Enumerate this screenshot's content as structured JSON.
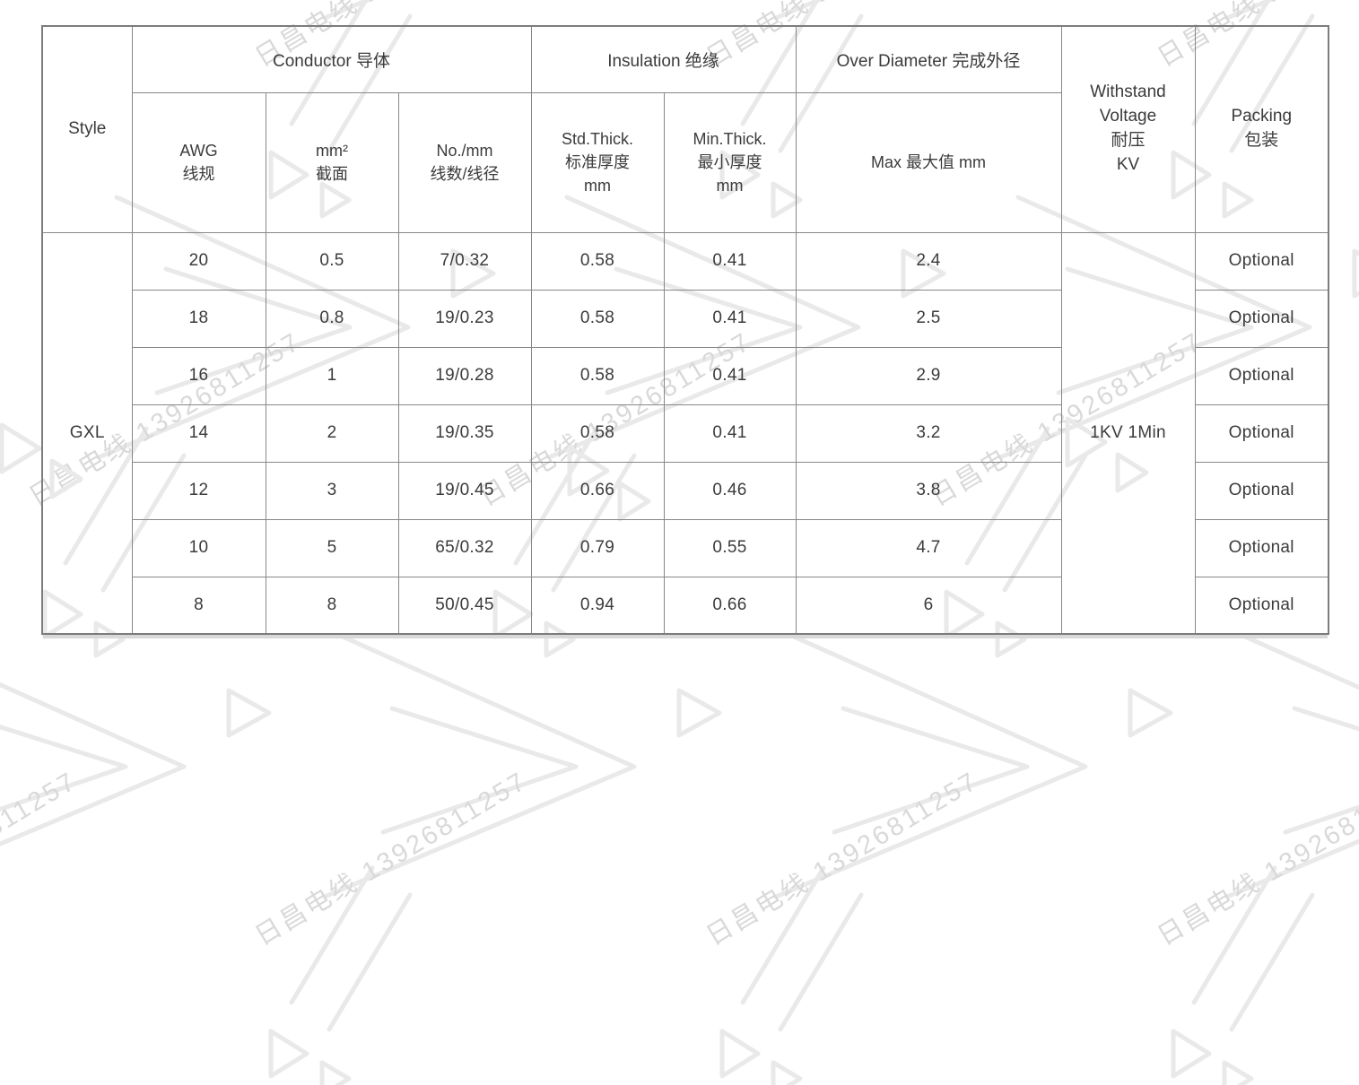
{
  "watermark": {
    "text": "日昌电线 13926811257"
  },
  "table": {
    "header": {
      "style_label": "Style",
      "conductor_group": "Conductor 导体",
      "insulation_group": "Insulation 绝缘",
      "over_diameter_group": "Over Diameter 完成外径",
      "awg": [
        "AWG",
        "线规"
      ],
      "mm2": [
        "mm²",
        "截面"
      ],
      "no_mm": [
        "No./mm",
        "线数/线径"
      ],
      "std_thick": [
        "Std.Thick.",
        "标准厚度",
        "mm"
      ],
      "min_thick": [
        "Min.Thick.",
        "最小厚度",
        "mm"
      ],
      "max": "Max 最大值 mm",
      "withstand": [
        "Withstand",
        "Voltage",
        "耐压",
        "KV"
      ],
      "packing": [
        "Packing",
        "包装"
      ]
    },
    "body": {
      "style_value": "GXL",
      "withstand_value": "1KV 1Min",
      "rows": [
        {
          "awg": "20",
          "mm2": "0.5",
          "no_mm": "7/0.32",
          "std_thick": "0.58",
          "min_thick": "0.41",
          "max": "2.4",
          "packing": "Optional"
        },
        {
          "awg": "18",
          "mm2": "0.8",
          "no_mm": "19/0.23",
          "std_thick": "0.58",
          "min_thick": "0.41",
          "max": "2.5",
          "packing": "Optional"
        },
        {
          "awg": "16",
          "mm2": "1",
          "no_mm": "19/0.28",
          "std_thick": "0.58",
          "min_thick": "0.41",
          "max": "2.9",
          "packing": "Optional"
        },
        {
          "awg": "14",
          "mm2": "2",
          "no_mm": "19/0.35",
          "std_thick": "0.58",
          "min_thick": "0.41",
          "max": "3.2",
          "packing": "Optional"
        },
        {
          "awg": "12",
          "mm2": "3",
          "no_mm": "19/0.45",
          "std_thick": "0.66",
          "min_thick": "0.46",
          "max": "3.8",
          "packing": "Optional"
        },
        {
          "awg": "10",
          "mm2": "5",
          "no_mm": "65/0.32",
          "std_thick": "0.79",
          "min_thick": "0.55",
          "max": "4.7",
          "packing": "Optional"
        },
        {
          "awg": "8",
          "mm2": "8",
          "no_mm": "50/0.45",
          "std_thick": "0.94",
          "min_thick": "0.66",
          "max": "6",
          "packing": "Optional"
        }
      ]
    }
  }
}
